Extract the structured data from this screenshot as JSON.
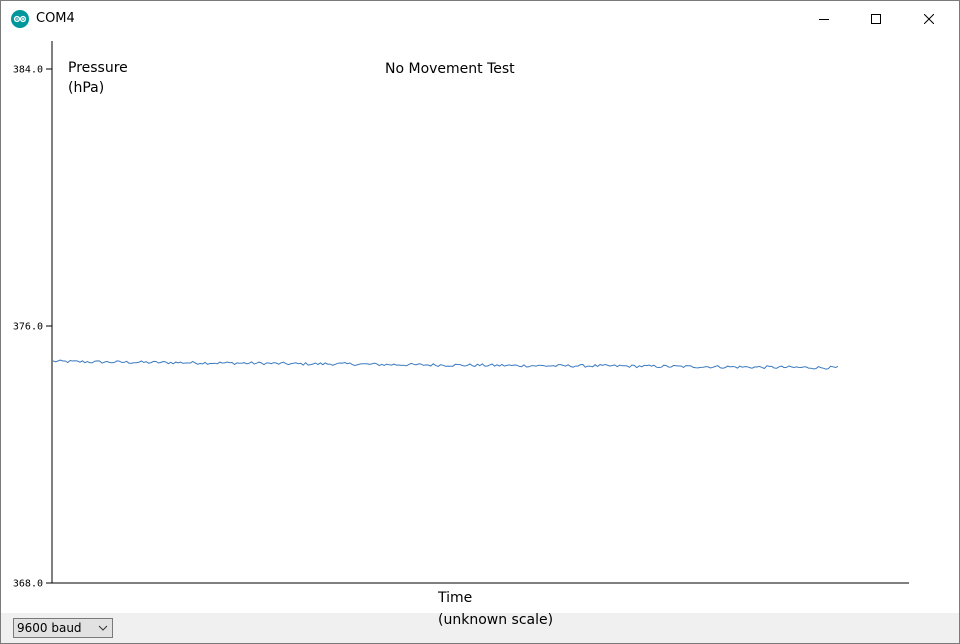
{
  "window": {
    "title": "COM4",
    "icons": {
      "app": "arduino-logo-icon",
      "minimize": "minimize-icon",
      "maximize": "maximize-icon",
      "close": "close-icon"
    }
  },
  "plot": {
    "title": "No Movement Test",
    "y_label_line1": "Pressure",
    "y_label_line2": "(hPa)",
    "x_label_line1": "Time",
    "x_label_line2": "(unknown scale)"
  },
  "statusbar": {
    "baud_value": "9600 baud",
    "dropdown_icon": "chevron-down-icon"
  },
  "colors": {
    "series": "#3a7abf",
    "axis": "#000000"
  },
  "chart_data": {
    "type": "line",
    "title": "No Movement Test",
    "ylabel": "Pressure (hPa)",
    "xlabel": "Time (unknown scale)",
    "ylim": [
      368.0,
      384.0
    ],
    "y_ticks": [
      "384.0",
      "376.0",
      "368.0"
    ],
    "grid": false,
    "series": [
      {
        "values": [
          374.9,
          374.88,
          374.87,
          374.86,
          374.85,
          374.84,
          374.82,
          374.82,
          374.8,
          374.79,
          374.78,
          374.77,
          374.76,
          374.76,
          374.75,
          374.74,
          374.73,
          374.72,
          374.71,
          374.7
        ]
      }
    ]
  }
}
